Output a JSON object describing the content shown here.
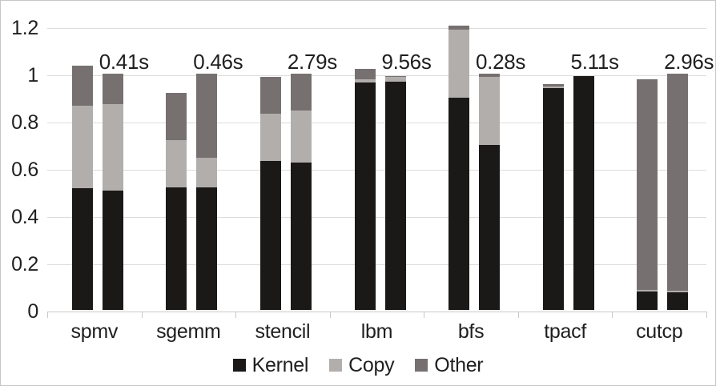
{
  "chart_data": {
    "type": "bar",
    "variant": "stacked-bars-two-per-category",
    "title": "",
    "xlabel": "",
    "ylabel": "",
    "categories": [
      "spmv",
      "sgemm",
      "stencil",
      "lbm",
      "bfs",
      "tpacf",
      "cutcp"
    ],
    "series": [
      {
        "name": "Kernel",
        "color": "#1a1918"
      },
      {
        "name": "Copy",
        "color": "#b2aeac"
      },
      {
        "name": "Other",
        "color": "#767170"
      }
    ],
    "stacks_note": "per category: two bars; each bar = [Kernel, Copy, Other] stacked values",
    "stacks": [
      [
        [
          0.515,
          0.35,
          0.17
        ],
        [
          0.505,
          0.365,
          0.13
        ]
      ],
      [
        [
          0.52,
          0.2,
          0.2
        ],
        [
          0.52,
          0.125,
          0.355
        ]
      ],
      [
        [
          0.63,
          0.2,
          0.155
        ],
        [
          0.625,
          0.22,
          0.155
        ]
      ],
      [
        [
          0.962,
          0.015,
          0.045
        ],
        [
          0.965,
          0.02,
          0.005
        ]
      ],
      [
        [
          0.9,
          0.285,
          0.02
        ],
        [
          0.7,
          0.285,
          0.015
        ]
      ],
      [
        [
          0.94,
          0.005,
          0.01
        ],
        [
          0.99,
          0.0,
          0.0
        ]
      ],
      [
        [
          0.078,
          0.007,
          0.89
        ],
        [
          0.073,
          0.007,
          0.92
        ]
      ]
    ],
    "annotations": [
      "0.41s",
      "0.46s",
      "2.79s",
      "9.56s",
      "0.28s",
      "5.11s",
      "2.96s"
    ],
    "y_ticks": [
      {
        "value": 0,
        "label": "0"
      },
      {
        "value": 0.2,
        "label": "0.2"
      },
      {
        "value": 0.4,
        "label": "0.4"
      },
      {
        "value": 0.6,
        "label": "0.6"
      },
      {
        "value": 0.8,
        "label": "0.8"
      },
      {
        "value": 1,
        "label": "1"
      },
      {
        "value": 1.2,
        "label": "1.2"
      }
    ],
    "ylim": [
      0,
      1.26
    ],
    "grid": true,
    "legend_position": "bottom"
  },
  "colors": {
    "kernel": "#1a1918",
    "copy": "#b2aeac",
    "other": "#767170",
    "gridline": "#dcdcdc",
    "axis": "#c9c9c9",
    "text": "#1f1f1f",
    "background": "#ffffff",
    "border": "#c6c6c6"
  }
}
